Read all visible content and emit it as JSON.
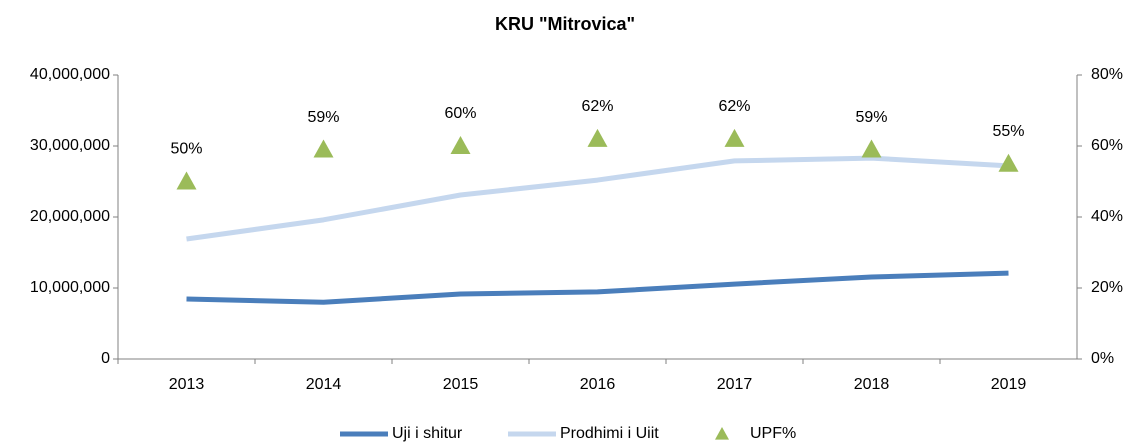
{
  "chart_data": {
    "type": "line",
    "title": "KRU \"Mitrovica\"",
    "categories": [
      "2013",
      "2014",
      "2015",
      "2016",
      "2017",
      "2018",
      "2019"
    ],
    "series": [
      {
        "name": "Uji i shitur",
        "color": "#4a7ebb",
        "values": [
          8450000,
          8000000,
          9150000,
          9450000,
          10550000,
          11550000,
          12100000
        ]
      },
      {
        "name": "Prodhimi i Uiit",
        "color": "#c5d7ee",
        "values": [
          16900000,
          19600000,
          23100000,
          25200000,
          27900000,
          28300000,
          27200000
        ]
      },
      {
        "name": "UPF%",
        "type": "scatter",
        "axis": "y2",
        "color": "#9bbb59",
        "values": [
          50,
          59,
          60,
          62,
          62,
          59,
          55
        ],
        "value_labels": [
          "50%",
          "59%",
          "60%",
          "62%",
          "62%",
          "59%",
          "55%"
        ]
      }
    ],
    "ylim": [
      0,
      40000000
    ],
    "yticks": [
      0,
      {
        "value": 10000000,
        "label": "10,000,000"
      },
      {
        "value": 20000000,
        "label": "20,000,000"
      },
      {
        "value": 30000000,
        "label": "30,000,000"
      },
      {
        "value": 40000000,
        "label": "40,000,000"
      }
    ],
    "y2lim": [
      0,
      80
    ],
    "y2ticks": [
      {
        "value": 0,
        "label": "0%"
      },
      {
        "value": 20,
        "label": "20%"
      },
      {
        "value": 40,
        "label": "40%"
      },
      {
        "value": 60,
        "label": "60%"
      },
      {
        "value": 80,
        "label": "80%"
      }
    ],
    "legend": "bottom"
  }
}
